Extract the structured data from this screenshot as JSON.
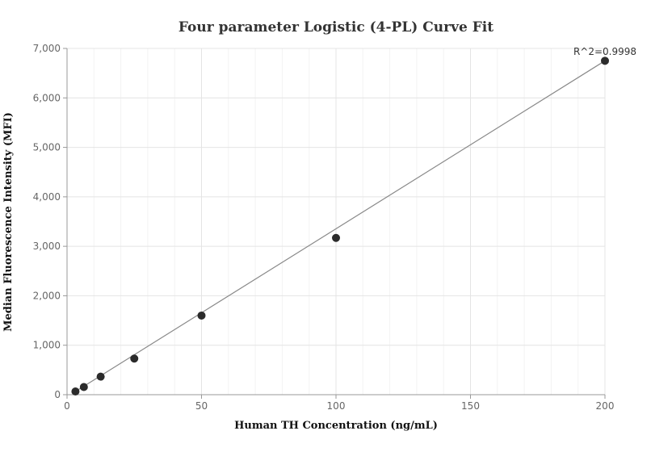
{
  "chart_data": {
    "type": "scatter",
    "title": "Four parameter Logistic (4-PL) Curve Fit",
    "xlabel": "Human TH Concentration (ng/mL)",
    "ylabel": "Median Fluorescence Intensity (MFI)",
    "xlim": [
      0,
      200
    ],
    "ylim": [
      0,
      7000
    ],
    "x_ticks": [
      0,
      50,
      100,
      150,
      200
    ],
    "x_tick_labels": [
      "0",
      "50",
      "100",
      "150",
      "200"
    ],
    "y_ticks": [
      0,
      1000,
      2000,
      3000,
      4000,
      5000,
      6000,
      7000
    ],
    "y_tick_labels": [
      "0",
      "1,000",
      "2,000",
      "3,000",
      "4,000",
      "5,000",
      "6,000",
      "7,000"
    ],
    "grid": true,
    "series": [
      {
        "points": [
          {
            "x": 3.125,
            "y": 65
          },
          {
            "x": 6.25,
            "y": 155
          },
          {
            "x": 12.5,
            "y": 365
          },
          {
            "x": 25,
            "y": 730
          },
          {
            "x": 50,
            "y": 1600
          },
          {
            "x": 100,
            "y": 3170
          },
          {
            "x": 200,
            "y": 6750
          }
        ],
        "color": "#2b2b2b"
      }
    ],
    "fit_curve": {
      "color": "#888888",
      "points": [
        {
          "x": 3.125,
          "y": 65
        },
        {
          "x": 200,
          "y": 6750
        }
      ]
    },
    "annotation": "R^2=0.9998"
  }
}
